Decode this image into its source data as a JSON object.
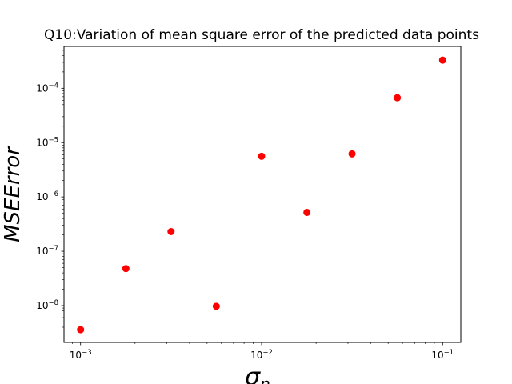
{
  "chart_data": {
    "type": "scatter",
    "title": "Q10:Variation of mean square error of the predicted data points",
    "xlabel": "σ_n",
    "xlabel_main": "σ",
    "xlabel_sub": "n",
    "ylabel": "MSEError",
    "xscale": "log",
    "yscale": "log",
    "xlim": [
      0.00081,
      0.126
    ],
    "ylim": [
      2.1e-09,
      0.00059
    ],
    "grid": false,
    "legend": "none",
    "marker_color": "#ff0000",
    "x_ticks": [
      {
        "base": "10",
        "exp": "−3",
        "value": 0.001
      },
      {
        "base": "10",
        "exp": "−2",
        "value": 0.01
      },
      {
        "base": "10",
        "exp": "−1",
        "value": 0.1
      }
    ],
    "y_ticks": [
      {
        "base": "10",
        "exp": "−8",
        "value": 1e-08
      },
      {
        "base": "10",
        "exp": "−7",
        "value": 1e-07
      },
      {
        "base": "10",
        "exp": "−6",
        "value": 1e-06
      },
      {
        "base": "10",
        "exp": "−5",
        "value": 1e-05
      },
      {
        "base": "10",
        "exp": "−4",
        "value": 0.0001
      }
    ],
    "points": [
      {
        "x": 0.001,
        "y": 3.6e-09
      },
      {
        "x": 0.00178,
        "y": 4.8e-08
      },
      {
        "x": 0.00316,
        "y": 2.3e-07
      },
      {
        "x": 0.00562,
        "y": 9.7e-09
      },
      {
        "x": 0.01,
        "y": 5.6e-06
      },
      {
        "x": 0.0178,
        "y": 5.2e-07
      },
      {
        "x": 0.0316,
        "y": 6.2e-06
      },
      {
        "x": 0.0562,
        "y": 6.7e-05
      },
      {
        "x": 0.1,
        "y": 0.00033
      }
    ]
  }
}
